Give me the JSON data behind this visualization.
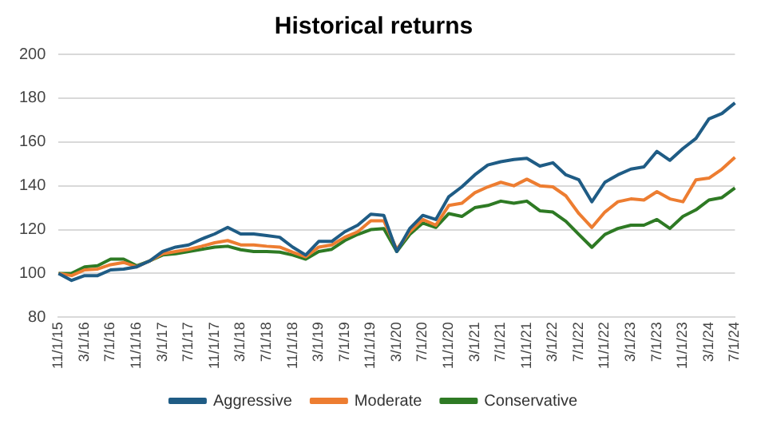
{
  "chart_data": {
    "type": "line",
    "title": "Historical returns",
    "categories": [
      "11/1/15",
      null,
      "3/1/16",
      null,
      "7/1/16",
      null,
      "11/1/16",
      null,
      "3/1/17",
      null,
      "7/1/17",
      null,
      "11/1/17",
      null,
      "3/1/18",
      null,
      "7/1/18",
      null,
      "11/1/18",
      null,
      "3/1/19",
      null,
      "7/1/19",
      null,
      "11/1/19",
      null,
      "3/1/20",
      null,
      "7/1/20",
      null,
      "11/1/20",
      null,
      "3/1/21",
      null,
      "7/1/21",
      null,
      "11/1/21",
      null,
      "3/1/22",
      null,
      "7/1/22",
      null,
      "11/1/22",
      null,
      "3/1/23",
      null,
      "7/1/23",
      null,
      "11/1/23",
      null,
      "3/1/24",
      null,
      "7/1/24"
    ],
    "series": [
      {
        "name": "Aggressive",
        "color": "#1f5c85",
        "values": [
          100,
          96.8,
          99,
          99,
          101.6,
          102,
          103,
          105.7,
          110,
          112,
          113,
          115.7,
          118,
          121,
          118,
          118,
          117.3,
          116.5,
          112,
          108.4,
          114.6,
          114.6,
          119,
          122,
          127,
          126.5,
          110,
          120.5,
          126.5,
          124.6,
          135,
          139.5,
          145,
          149.5,
          151,
          152,
          152.5,
          149,
          150.5,
          145,
          142.7,
          132.7,
          141.6,
          145,
          147.6,
          148.6,
          155.7,
          151.6,
          157,
          161.6,
          170.5,
          173,
          177.8
        ]
      },
      {
        "name": "Moderate",
        "color": "#ed7d31",
        "values": [
          100,
          99,
          101.6,
          102,
          104,
          105,
          103,
          105.7,
          109,
          110,
          111,
          112.4,
          114,
          115,
          113,
          113,
          112.4,
          112,
          109.7,
          107.6,
          112,
          113,
          116.5,
          119,
          124,
          124,
          111,
          119,
          124.6,
          122,
          131,
          132,
          136.8,
          139.5,
          141.6,
          140,
          143,
          140,
          139.5,
          135.4,
          127.3,
          121,
          128,
          132.7,
          134,
          133.5,
          137.3,
          134,
          132.7,
          142.7,
          143.5,
          147.6,
          153
        ]
      },
      {
        "name": "Conservative",
        "color": "#2e7a24",
        "values": [
          100,
          100,
          103,
          103.5,
          106.5,
          106.5,
          103.5,
          105.7,
          108.4,
          109,
          110,
          111,
          112,
          112.4,
          110.8,
          110,
          110,
          109.7,
          108.4,
          106.5,
          110,
          111,
          115,
          117.8,
          120,
          120.5,
          110,
          117.8,
          123,
          121,
          127.3,
          126,
          130,
          131,
          133,
          132,
          133,
          128.6,
          128,
          123.8,
          117.8,
          111.9,
          117.8,
          120.5,
          122,
          122,
          124.6,
          120.5,
          126,
          129,
          133.5,
          134.6,
          139
        ]
      }
    ],
    "ylim": [
      80,
      200
    ],
    "yticks": [
      80,
      100,
      120,
      140,
      160,
      180,
      200
    ],
    "grid": "y",
    "legend": "bottom",
    "marker": "none",
    "line_style": "solid"
  }
}
